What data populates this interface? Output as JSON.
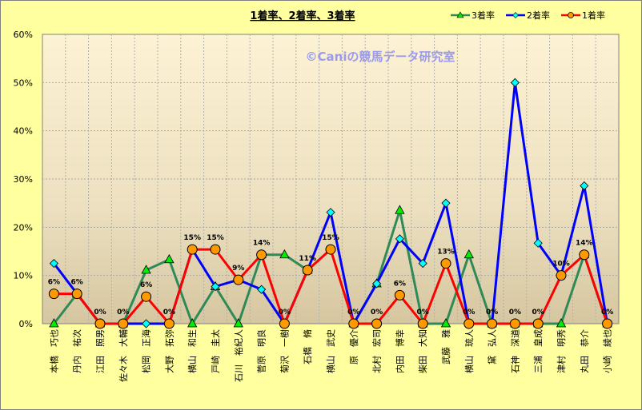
{
  "chart_data": {
    "type": "line",
    "title": "1着率、2着率、3着率",
    "watermark": "©Caniの競馬データ研究室",
    "xlabel": "",
    "ylabel": "",
    "ylim": [
      0,
      60
    ],
    "yticks": [
      "0%",
      "10%",
      "20%",
      "30%",
      "40%",
      "50%",
      "60%"
    ],
    "grid": true,
    "legend_position": "top-right",
    "categories": [
      "本橋　巧也",
      "丹内　祐次",
      "江田　照男",
      "佐々木　大輔",
      "松岡　正海",
      "大野　拓弥",
      "横山　和生",
      "戸崎　圭太",
      "石川　裕紀人",
      "菅原　明良",
      "菊沢　一樹",
      "石橋　脩",
      "横山　武史",
      "原　優介",
      "北村　宏司",
      "内田　博幸",
      "柴田　大知",
      "武藤　雅",
      "横山　琉人",
      "黛　弘人",
      "石神　深道",
      "三浦　皇成",
      "津村　明秀",
      "丸田　恭介",
      "小崎　綾也"
    ],
    "series": [
      {
        "name": "3着率",
        "color": "#2e8b57",
        "marker": "triangle",
        "marker_color": "#00ee00",
        "values": [
          0,
          6.2,
          0,
          0,
          11.1,
          13.3,
          0,
          7.7,
          0,
          14.3,
          14.3,
          11.1,
          null,
          0,
          8.3,
          23.5,
          0,
          0,
          14.3,
          0,
          0,
          0,
          0,
          14.3,
          0
        ]
      },
      {
        "name": "2着率",
        "color": "#0000ff",
        "marker": "diamond",
        "marker_color": "#00ffff",
        "values": [
          12.5,
          6.2,
          0,
          0,
          0,
          0,
          15.4,
          7.7,
          9.1,
          7.1,
          0,
          11.1,
          23.1,
          0,
          8.3,
          17.6,
          12.5,
          25,
          0,
          0,
          50,
          16.7,
          10,
          28.6,
          0
        ]
      },
      {
        "name": "1着率",
        "color": "#ff0000",
        "marker": "circle",
        "marker_color": "#ff9900",
        "values": [
          6.2,
          6.2,
          0,
          0,
          5.6,
          0,
          15.4,
          15.4,
          9.1,
          14.3,
          0,
          11.1,
          15.4,
          0,
          0,
          5.9,
          0,
          12.5,
          0,
          0,
          0,
          0,
          10,
          14.3,
          0
        ],
        "data_labels": [
          "6%",
          "6%",
          "0%",
          "0%",
          "6%",
          "0%",
          "15%",
          "15%",
          "9%",
          "14%",
          "0%",
          "11%",
          "15%",
          "0%",
          "0%",
          "6%",
          "0%",
          "13%",
          "0%",
          "0%",
          "0%",
          "0%",
          "10%",
          "14%",
          "0%"
        ]
      }
    ]
  }
}
